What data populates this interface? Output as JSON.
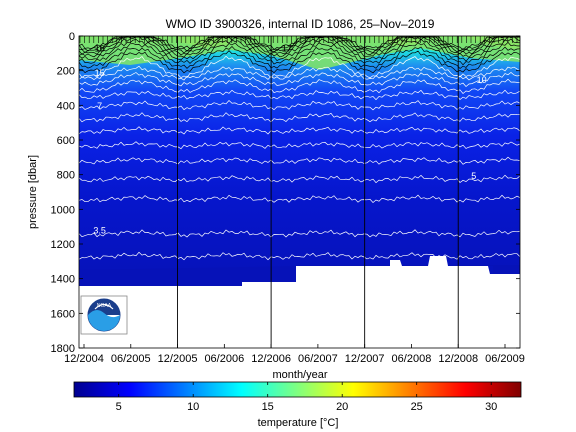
{
  "chart_data": [
    {
      "type": "heatmap",
      "title": "WMO ID 3900326, internal ID 1086, 25–Nov–2019",
      "xlabel": "month/year",
      "ylabel": "pressure [dbar]",
      "x_ticks": [
        "12/2004",
        "06/2005",
        "12/2005",
        "06/2006",
        "12/2006",
        "06/2007",
        "12/2007",
        "06/2008",
        "12/2008",
        "06/2009"
      ],
      "y_ticks": [
        0,
        200,
        400,
        600,
        800,
        1000,
        1200,
        1400,
        1600,
        1800
      ],
      "ylim": [
        1800,
        0
      ],
      "contour_labels": [
        {
          "label": "16",
          "pressure": 90,
          "x_date": "2005-02"
        },
        {
          "label": "15",
          "pressure": 230,
          "x_date": "2005-02"
        },
        {
          "label": "17",
          "pressure": 90,
          "x_date": "2007-02"
        },
        {
          "label": "10",
          "pressure": 270,
          "x_date": "2009-03"
        },
        {
          "label": "7",
          "pressure": 420,
          "x_date": "2005-02"
        },
        {
          "label": "5",
          "pressure": 825,
          "x_date": "2009-02"
        },
        {
          "label": "3.5",
          "pressure": 1140,
          "x_date": "2005-02"
        }
      ],
      "vertical_lines": [
        "2005-12",
        "2006-12",
        "2007-12",
        "2008-12"
      ],
      "grid": false,
      "colormap": "jet"
    },
    {
      "type": "heatmap",
      "xlabel": "temperature [°C]",
      "colorbar_range": [
        2,
        32
      ],
      "colorbar_ticks": [
        5,
        10,
        15,
        20,
        25,
        30
      ]
    }
  ],
  "logo": {
    "text": "NOAA",
    "name": "noaa-logo"
  }
}
